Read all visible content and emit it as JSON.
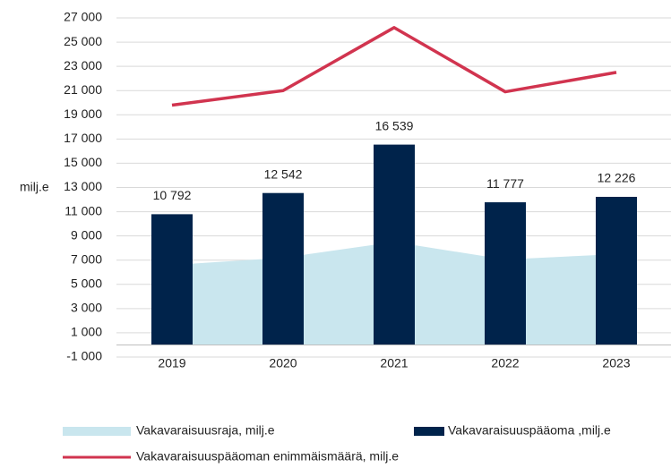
{
  "chart_data": {
    "type": "combo",
    "y_label": "milj.e",
    "categories": [
      "2019",
      "2020",
      "2021",
      "2022",
      "2023"
    ],
    "series": [
      {
        "name": "Vakavaraisuusraja, milj.e",
        "type": "area",
        "color": "#c9e6ee",
        "values": [
          6600,
          7200,
          8500,
          7050,
          7500
        ]
      },
      {
        "name": "Vakavaraisuuspääoma ,milj.e",
        "type": "bar",
        "color": "#00234b",
        "values": [
          10792,
          12542,
          16539,
          11777,
          12226
        ],
        "value_labels": [
          "10 792",
          "12 542",
          "16 539",
          "11 777",
          "12 226"
        ]
      },
      {
        "name": "Vakavaraisuuspääoman enimmäismäärä, milj.e",
        "type": "line",
        "color": "#d1344f",
        "values": [
          19800,
          21000,
          26200,
          20900,
          22500
        ]
      }
    ],
    "ylim": [
      -1000,
      27000
    ],
    "yticks": [
      {
        "value": -1000,
        "label": "-1 000"
      },
      {
        "value": 1000,
        "label": "1 000"
      },
      {
        "value": 3000,
        "label": "3 000"
      },
      {
        "value": 5000,
        "label": "5 000"
      },
      {
        "value": 7000,
        "label": "7 000"
      },
      {
        "value": 9000,
        "label": "9 000"
      },
      {
        "value": 11000,
        "label": "11 000"
      },
      {
        "value": 13000,
        "label": "13 000"
      },
      {
        "value": 15000,
        "label": "15 000"
      },
      {
        "value": 17000,
        "label": "17 000"
      },
      {
        "value": 19000,
        "label": "19 000"
      },
      {
        "value": 21000,
        "label": "21 000"
      },
      {
        "value": 23000,
        "label": "23 000"
      },
      {
        "value": 25000,
        "label": "25 000"
      },
      {
        "value": 27000,
        "label": "27 000"
      }
    ],
    "grid": true
  }
}
